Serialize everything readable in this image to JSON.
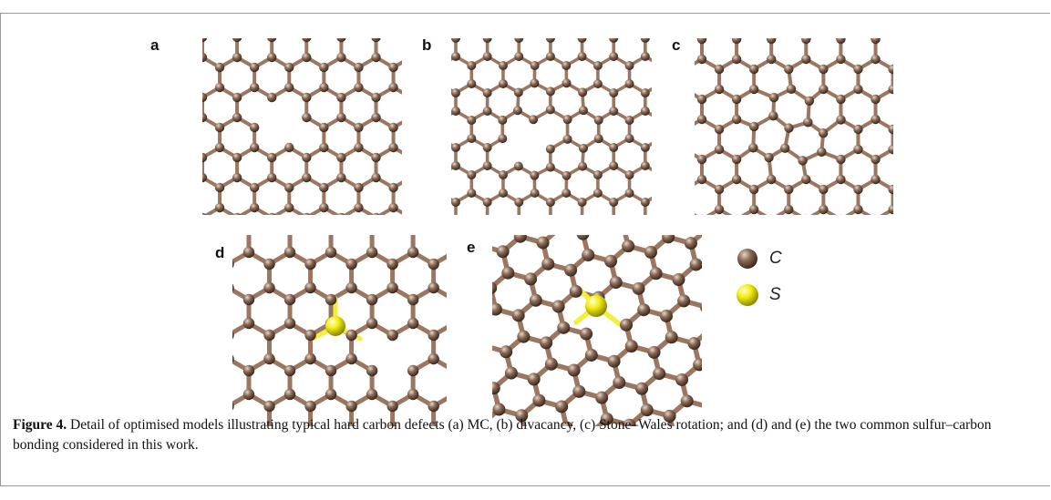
{
  "panels": [
    {
      "id": "a",
      "label": "a"
    },
    {
      "id": "b",
      "label": "b"
    },
    {
      "id": "c",
      "label": "c"
    },
    {
      "id": "d",
      "label": "d"
    },
    {
      "id": "e",
      "label": "e"
    }
  ],
  "legend": [
    {
      "symbol": "C",
      "element": "carbon",
      "color": "#8a6a57"
    },
    {
      "symbol": "S",
      "element": "sulfur",
      "color": "#f2ec10"
    }
  ],
  "colors": {
    "carbon_atom": "#8a6a57",
    "carbon_bond": "#9b7661",
    "sulfur_atom": "#f2ec10",
    "sulfur_bond": "#f3ef3a"
  },
  "caption": {
    "label": "Figure 4.",
    "text": " Detail of optimised models illustrating typical hard carbon defects (a) MC, (b) divacancy, (c) Stone–Wales rotation; and (d) and (e) the two common sulfur–carbon bonding considered in this work."
  }
}
